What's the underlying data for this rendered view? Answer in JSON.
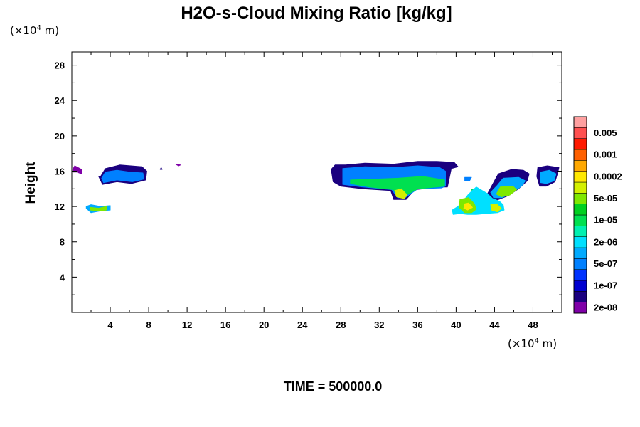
{
  "chart_data": {
    "type": "heatmap",
    "title": "H2O-s-Cloud Mixing Ratio [kg/kg]",
    "ylabel": "Height",
    "x_unit_base": "(×10",
    "x_unit_exp": "4",
    "x_unit_tail": " m)",
    "y_unit_base": "(×10",
    "y_unit_exp": "4",
    "y_unit_tail": " m)",
    "footer": "TIME = 500000.0",
    "xlim": [
      0,
      51
    ],
    "ylim": [
      0,
      29.5
    ],
    "xticks": [
      4,
      8,
      12,
      16,
      20,
      24,
      28,
      32,
      36,
      40,
      44,
      48
    ],
    "yticks": [
      4,
      8,
      12,
      16,
      20,
      24,
      28
    ],
    "grid": false,
    "colorbar": {
      "placement": "right",
      "colors": [
        "#7f00a8",
        "#1a007f",
        "#0000d0",
        "#0033ff",
        "#0080ff",
        "#00aaff",
        "#00e0ff",
        "#00f0b0",
        "#00e050",
        "#00d020",
        "#7fe800",
        "#d4f000",
        "#ffe800",
        "#ffa800",
        "#ff6000",
        "#ff1a00",
        "#ff5050",
        "#ffa0a0"
      ],
      "labels": [
        "2e-08",
        "1e-07",
        "5e-07",
        "2e-06",
        "1e-05",
        "5e-05",
        "0.0002",
        "0.001",
        "0.005"
      ]
    },
    "features": [
      {
        "x": [
          0.1,
          0.3,
          1.0,
          1.0,
          0.5,
          0.1
        ],
        "y": [
          16.2,
          16.6,
          16.2,
          15.7,
          15.9,
          15.9
        ],
        "level": 0
      },
      {
        "x": [
          3.0,
          3.5,
          5.0,
          7.3,
          7.8,
          7.7,
          6.2,
          4.7,
          3.2,
          2.8,
          3.0
        ],
        "y": [
          15.4,
          16.3,
          16.7,
          16.5,
          16.0,
          15.0,
          14.6,
          14.8,
          14.5,
          15.4,
          15.4
        ],
        "level": 1
      },
      {
        "x": [
          3.1,
          3.5,
          4.7,
          6.0,
          7.4,
          7.5,
          6.3,
          4.7,
          3.3,
          3.1
        ],
        "y": [
          15.2,
          15.9,
          16.1,
          15.9,
          15.8,
          15.1,
          14.8,
          15.0,
          14.7,
          15.2
        ],
        "level": 4
      },
      {
        "x": [
          1.5,
          2.0,
          3.0,
          4.0,
          4.0,
          3.0,
          2.0,
          1.5
        ],
        "y": [
          12.0,
          12.2,
          12.0,
          12.1,
          11.6,
          11.5,
          11.3,
          11.8
        ],
        "level": 5
      },
      {
        "x": [
          1.9,
          2.8,
          3.6,
          3.6,
          2.8,
          1.9
        ],
        "y": [
          11.9,
          11.8,
          12.0,
          11.6,
          11.5,
          11.6
        ],
        "level": 10
      },
      {
        "x": [
          9.3,
          9.4,
          9.2
        ],
        "y": [
          16.4,
          16.2,
          16.2
        ],
        "level": 1
      },
      {
        "x": [
          10.8,
          11.3,
          11.1
        ],
        "y": [
          16.8,
          16.7,
          16.6
        ],
        "level": 0
      },
      {
        "x": [
          27.0,
          27.4,
          28.5,
          30.5,
          33.5,
          36.0,
          38.0,
          39.8,
          40.2,
          39.5,
          39.1,
          38.5,
          35.7,
          34.8,
          33.5,
          33.2,
          30.3,
          28.0,
          27.2,
          27.0
        ],
        "y": [
          16.2,
          16.7,
          16.7,
          16.9,
          16.8,
          17.1,
          17.1,
          17.0,
          16.5,
          16.3,
          14.2,
          14.2,
          13.9,
          12.8,
          12.8,
          13.8,
          14.0,
          14.3,
          14.8,
          16.2
        ],
        "level": 1
      },
      {
        "x": [
          28.2,
          30.5,
          33.5,
          36.0,
          38.3,
          38.9,
          38.9,
          38.5,
          36.0,
          34.7,
          33.9,
          33.3,
          30.3,
          28.2,
          28.2
        ],
        "y": [
          16.3,
          16.5,
          16.4,
          16.6,
          16.4,
          16.0,
          14.3,
          14.1,
          14.0,
          13.0,
          13.0,
          13.9,
          14.2,
          14.5,
          16.3
        ],
        "level": 4
      },
      {
        "x": [
          29.0,
          31.5,
          34.0,
          36.5,
          38.8,
          38.8,
          36.0,
          34.5,
          33.9,
          33.5,
          31.0,
          29.0
        ],
        "y": [
          15.0,
          15.1,
          15.2,
          15.4,
          15.0,
          14.3,
          14.0,
          13.1,
          13.1,
          13.9,
          14.2,
          14.6
        ],
        "level": 8
      },
      {
        "x": [
          33.6,
          34.3,
          34.9,
          34.6,
          33.8
        ],
        "y": [
          13.8,
          14.0,
          13.3,
          12.9,
          13.1
        ],
        "level": 11
      },
      {
        "x": [
          40.9,
          41.6,
          41.4,
          40.9
        ],
        "y": [
          15.3,
          15.3,
          14.9,
          14.9
        ],
        "level": 4
      },
      {
        "x": [
          41.6,
          42.1,
          41.8
        ],
        "y": [
          13.9,
          13.9,
          13.6
        ],
        "level": 8
      },
      {
        "x": [
          44.4,
          45.8,
          47.0,
          47.6,
          47.4,
          46.5,
          45.4,
          44.2,
          43.6,
          43.3,
          43.8,
          44.4
        ],
        "y": [
          15.7,
          16.2,
          16.1,
          15.7,
          14.9,
          14.0,
          13.2,
          12.7,
          12.7,
          13.5,
          14.5,
          15.7
        ],
        "level": 1
      },
      {
        "x": [
          44.9,
          46.5,
          47.2,
          46.8,
          45.9,
          44.8,
          43.9,
          43.6,
          44.3,
          44.9
        ],
        "y": [
          15.2,
          15.3,
          14.9,
          14.3,
          13.6,
          13.0,
          13.0,
          13.6,
          14.4,
          15.2
        ],
        "level": 5
      },
      {
        "x": [
          44.6,
          45.9,
          46.3,
          45.6,
          44.7,
          44.2,
          44.6
        ],
        "y": [
          14.2,
          14.3,
          13.9,
          13.3,
          13.1,
          13.4,
          14.2
        ],
        "level": 10
      },
      {
        "x": [
          42.1,
          43.2,
          43.8,
          44.5,
          44.9,
          45.0,
          44.3,
          43.1,
          42.1,
          41.2,
          40.4,
          39.7,
          39.6,
          40.2,
          40.8,
          41.3,
          42.1
        ],
        "y": [
          14.2,
          13.5,
          12.9,
          12.6,
          12.2,
          11.6,
          11.3,
          11.2,
          11.1,
          11.1,
          11.2,
          11.1,
          11.6,
          12.0,
          12.7,
          13.4,
          14.2
        ],
        "level": 6
      },
      {
        "x": [
          40.4,
          41.3,
          41.9,
          42.1,
          41.6,
          40.9,
          40.3,
          40.4
        ],
        "y": [
          12.8,
          13.0,
          12.3,
          11.7,
          11.3,
          11.3,
          11.9,
          12.8
        ],
        "level": 10
      },
      {
        "x": [
          40.9,
          41.3,
          41.7,
          41.2,
          40.8
        ],
        "y": [
          12.3,
          12.4,
          11.9,
          11.6,
          11.8
        ],
        "level": 12
      },
      {
        "x": [
          43.6,
          44.2,
          44.7,
          44.3,
          43.7
        ],
        "y": [
          12.2,
          12.3,
          11.8,
          11.4,
          11.6
        ],
        "level": 11
      },
      {
        "x": [
          48.5,
          49.5,
          50.7,
          50.6,
          50.3,
          49.4,
          48.7,
          48.4,
          48.5
        ],
        "y": [
          16.4,
          16.6,
          16.4,
          15.9,
          14.8,
          14.3,
          14.3,
          15.4,
          16.4
        ],
        "level": 1
      },
      {
        "x": [
          48.8,
          49.7,
          50.4,
          50.2,
          49.4,
          48.8,
          48.8
        ],
        "y": [
          15.9,
          16.1,
          15.7,
          14.9,
          14.6,
          14.7,
          15.9
        ],
        "level": 5
      }
    ]
  }
}
